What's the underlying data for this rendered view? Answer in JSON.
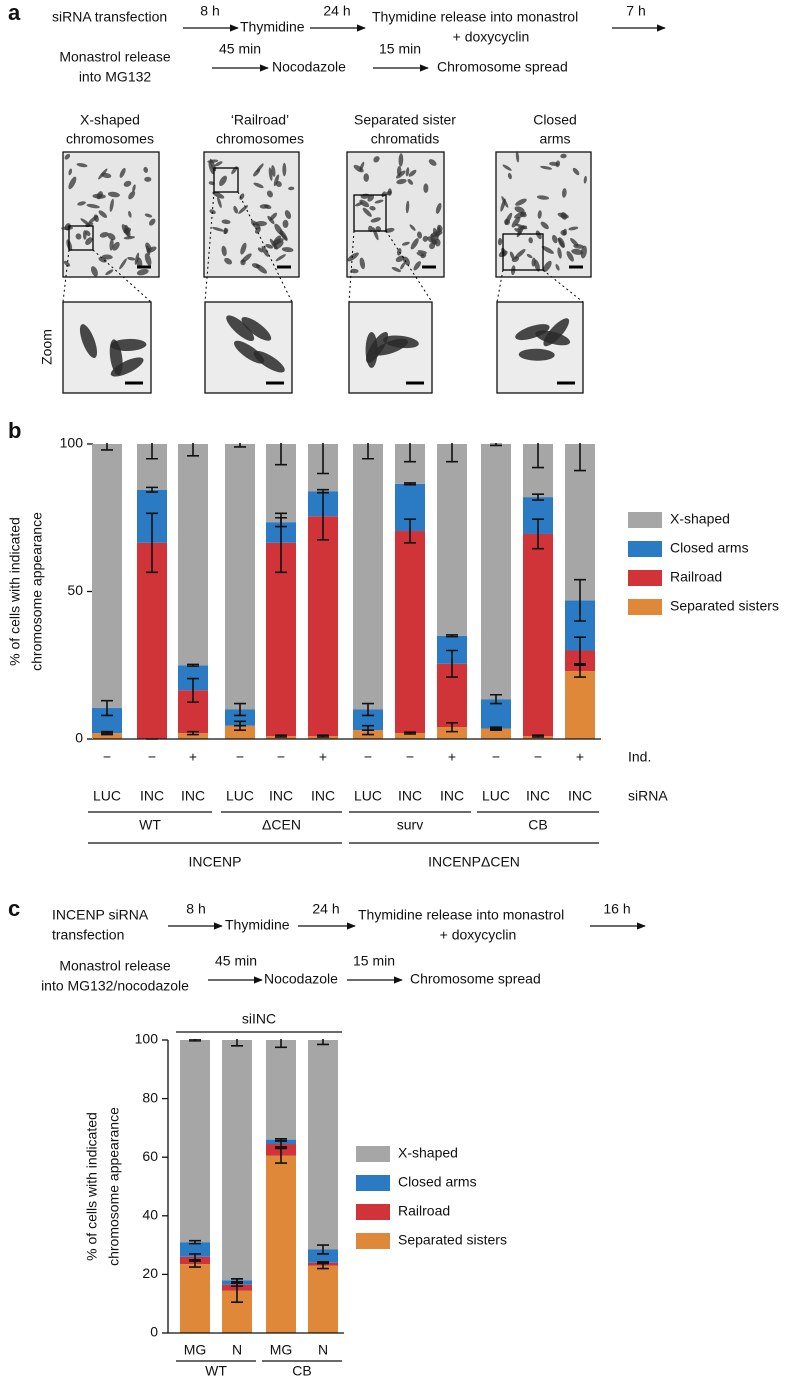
{
  "panel_a": {
    "label": "a",
    "protocol": [
      "siRNA transfection",
      "8 h",
      "Thymidine",
      "24 h",
      "Thymidine release into monastrol",
      "+ doxycyclin",
      "7 h",
      "Monastrol release",
      "into MG132",
      "45 min",
      "Nocodazole",
      "15 min",
      "Chromosome spread"
    ],
    "images": [
      [
        "X-shaped",
        "chromosomes"
      ],
      [
        "‘Railroad’",
        "chromosomes"
      ],
      [
        "Separated sister",
        "chromatids"
      ],
      [
        "Closed",
        "arms"
      ]
    ],
    "zoom_label": "Zoom"
  },
  "panel_b": {
    "label": "b"
  },
  "panel_c": {
    "label": "c",
    "protocol": [
      "INCENP siRNA",
      "transfection",
      "8 h",
      "Thymidine",
      "24 h",
      "Thymidine release into monastrol",
      "+ doxycyclin",
      "16 h",
      "Monastrol release",
      "into MG132/nocodazole",
      "45 min",
      "Nocodazole",
      "15 min",
      "Chromosome spread"
    ]
  },
  "chart_data": [
    {
      "type": "bar",
      "stacked": true,
      "ylabel": [
        "% of cells with indicated",
        "chromosome appearance"
      ],
      "ylim": [
        0,
        100
      ],
      "yticks": [
        0,
        50,
        100
      ],
      "categories": [
        "LUC",
        "INC",
        "INC",
        "LUC",
        "INC",
        "INC",
        "LUC",
        "INC",
        "INC",
        "LUC",
        "INC",
        "INC"
      ],
      "categories_label": "siRNA",
      "induction": [
        "−",
        "−",
        "+",
        "−",
        "−",
        "+",
        "−",
        "−",
        "+",
        "−",
        "−",
        "+"
      ],
      "induction_label": "Ind.",
      "groups": [
        "WT",
        "ΔCEN",
        "surv",
        "CB"
      ],
      "supergroups": [
        "INCENP",
        "INCENPΔCEN"
      ],
      "legend": "right",
      "series": [
        {
          "name": "X-shaped",
          "color": "#a6a6a6",
          "values": [
            89.5,
            15.5,
            75,
            90,
            26.5,
            16,
            90,
            13.5,
            65,
            86.5,
            18,
            53
          ],
          "errors": [
            2,
            5,
            4,
            1,
            7,
            10,
            5,
            6,
            6,
            0.5,
            8,
            9
          ]
        },
        {
          "name": "Closed arms",
          "color": "#2a7bc3",
          "values": [
            8.5,
            18,
            8.5,
            5.5,
            7,
            8.5,
            7,
            16,
            9.5,
            10,
            12.5,
            17
          ],
          "errors": [
            2.5,
            0.8,
            0.3,
            2,
            1.5,
            0.5,
            2,
            0.3,
            0.3,
            1.5,
            1,
            7
          ]
        },
        {
          "name": "Railroad",
          "color": "#d13438",
          "values": [
            0,
            66.5,
            14.5,
            0,
            65.5,
            74.5,
            0,
            68.5,
            21.5,
            0,
            68.5,
            7
          ],
          "errors": [
            0,
            10,
            4,
            0,
            10,
            8,
            0,
            4,
            4.5,
            0,
            5,
            4.5
          ]
        },
        {
          "name": "Separated sisters",
          "color": "#e0883a",
          "values": [
            2,
            0,
            2,
            4.5,
            1,
            1,
            3,
            2,
            4,
            3.5,
            1,
            23
          ],
          "errors": [
            0.5,
            0,
            0.5,
            1.5,
            0.3,
            0.3,
            1.5,
            0.3,
            1.5,
            0.5,
            0.3,
            2
          ]
        }
      ]
    },
    {
      "type": "bar",
      "stacked": true,
      "ylabel": [
        "% of cells with indicated",
        "chromosome appearance"
      ],
      "ylim": [
        0,
        100
      ],
      "yticks": [
        0,
        20,
        40,
        60,
        80,
        100
      ],
      "header": "siINC",
      "categories": [
        "MG",
        "N",
        "MG",
        "N"
      ],
      "groups": [
        "WT",
        "CB"
      ],
      "legend": "right",
      "series": [
        {
          "name": "X-shaped",
          "color": "#a6a6a6",
          "values": [
            69,
            82,
            34,
            71.5
          ],
          "errors": [
            0.3,
            2,
            2.5,
            1.5
          ]
        },
        {
          "name": "Closed arms",
          "color": "#2a7bc3",
          "values": [
            5,
            1.5,
            1.5,
            4.5
          ],
          "errors": [
            0.5,
            0.5,
            0.3,
            1.5
          ]
        },
        {
          "name": "Railroad",
          "color": "#d13438",
          "values": [
            2.5,
            2,
            4,
            1
          ],
          "errors": [
            1,
            0.5,
            1,
            0.3
          ]
        },
        {
          "name": "Separated sisters",
          "color": "#e0883a",
          "values": [
            23.5,
            14.5,
            60.5,
            23
          ],
          "errors": [
            1,
            4,
            2.5,
            1
          ]
        }
      ]
    }
  ]
}
